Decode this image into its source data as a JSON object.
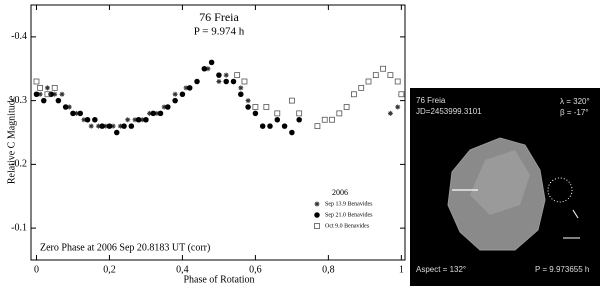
{
  "chart_data": {
    "type": "scatter",
    "title": "76 Freia",
    "subtitle": "P = 9.974 h",
    "annotation": "Zero Phase at 2006 Sep 20.8183 UT (corr)",
    "xlabel": "Phase of Rotation",
    "ylabel": "Relative C Magnitude",
    "legend_title": "2006",
    "legend": "lower right",
    "xlim": [
      -0.015,
      1.01
    ],
    "ylim": [
      -0.05,
      -0.45
    ],
    "xticks": [
      0,
      {
        "value": 0.2,
        "label": "0,2"
      },
      {
        "value": 0.4,
        "label": "0,4"
      },
      {
        "value": 0.6,
        "label": "0,6"
      },
      {
        "value": 0.8,
        "label": "0,8"
      },
      1
    ],
    "yticks": [
      -0.4,
      -0.3,
      -0.2,
      -0.1
    ],
    "series": [
      {
        "name": "Sep 13.9 Benavides",
        "marker": "asterisk",
        "color": "#333333",
        "x": [
          0.01,
          0.03,
          0.05,
          0.07,
          0.09,
          0.11,
          0.13,
          0.15,
          0.17,
          0.19,
          0.21,
          0.23,
          0.25,
          0.27,
          0.29,
          0.31,
          0.33,
          0.35,
          0.38,
          0.41,
          0.44,
          0.47,
          0.5,
          0.52,
          0.54,
          0.56,
          0.58,
          0.97,
          0.99
        ],
        "values": [
          -0.31,
          -0.32,
          -0.31,
          -0.31,
          -0.29,
          -0.28,
          -0.27,
          -0.26,
          -0.26,
          -0.26,
          -0.26,
          -0.26,
          -0.27,
          -0.27,
          -0.27,
          -0.28,
          -0.28,
          -0.29,
          -0.31,
          -0.32,
          -0.33,
          -0.35,
          -0.33,
          -0.34,
          -0.33,
          -0.32,
          -0.3,
          -0.28,
          -0.29
        ]
      },
      {
        "name": "Sep 21.0 Benavides",
        "marker": "circle",
        "color": "#000000",
        "x": [
          0,
          0.02,
          0.04,
          0.06,
          0.08,
          0.1,
          0.12,
          0.14,
          0.16,
          0.18,
          0.2,
          0.22,
          0.24,
          0.26,
          0.28,
          0.3,
          0.32,
          0.34,
          0.36,
          0.38,
          0.4,
          0.42,
          0.44,
          0.46,
          0.48,
          0.5,
          0.52,
          0.54,
          0.56,
          0.58,
          0.6,
          0.62,
          0.64,
          0.66,
          0.68,
          0.7,
          0.72
        ],
        "values": [
          -0.31,
          -0.3,
          -0.31,
          -0.3,
          -0.29,
          -0.28,
          -0.28,
          -0.27,
          -0.27,
          -0.26,
          -0.26,
          -0.25,
          -0.26,
          -0.26,
          -0.27,
          -0.27,
          -0.28,
          -0.28,
          -0.29,
          -0.3,
          -0.31,
          -0.32,
          -0.33,
          -0.35,
          -0.36,
          -0.34,
          -0.33,
          -0.33,
          -0.31,
          -0.29,
          -0.28,
          -0.26,
          -0.26,
          -0.27,
          -0.26,
          -0.25,
          -0.27
        ]
      },
      {
        "name": "Oct 9.0 Benavides",
        "marker": "square",
        "color": "#555555",
        "x": [
          0,
          0.01,
          0.03,
          0.05,
          0.55,
          0.57,
          0.6,
          0.63,
          0.66,
          0.7,
          0.72,
          0.77,
          0.79,
          0.81,
          0.83,
          0.85,
          0.87,
          0.89,
          0.91,
          0.93,
          0.95,
          0.97,
          0.99,
          1
        ],
        "values": [
          -0.33,
          -0.32,
          -0.31,
          -0.32,
          -0.34,
          -0.33,
          -0.29,
          -0.29,
          -0.28,
          -0.3,
          -0.28,
          -0.26,
          -0.27,
          -0.27,
          -0.28,
          -0.29,
          -0.31,
          -0.32,
          -0.33,
          -0.34,
          -0.35,
          -0.34,
          -0.33,
          -0.31
        ]
      }
    ]
  },
  "model_image": {
    "name": "76 Freia",
    "jd": "JD=2453999.3101",
    "lambda": "λ = 320°",
    "beta": "β = -17°",
    "aspect": "Aspect = 132°",
    "period": "P = 9.973655 h"
  }
}
